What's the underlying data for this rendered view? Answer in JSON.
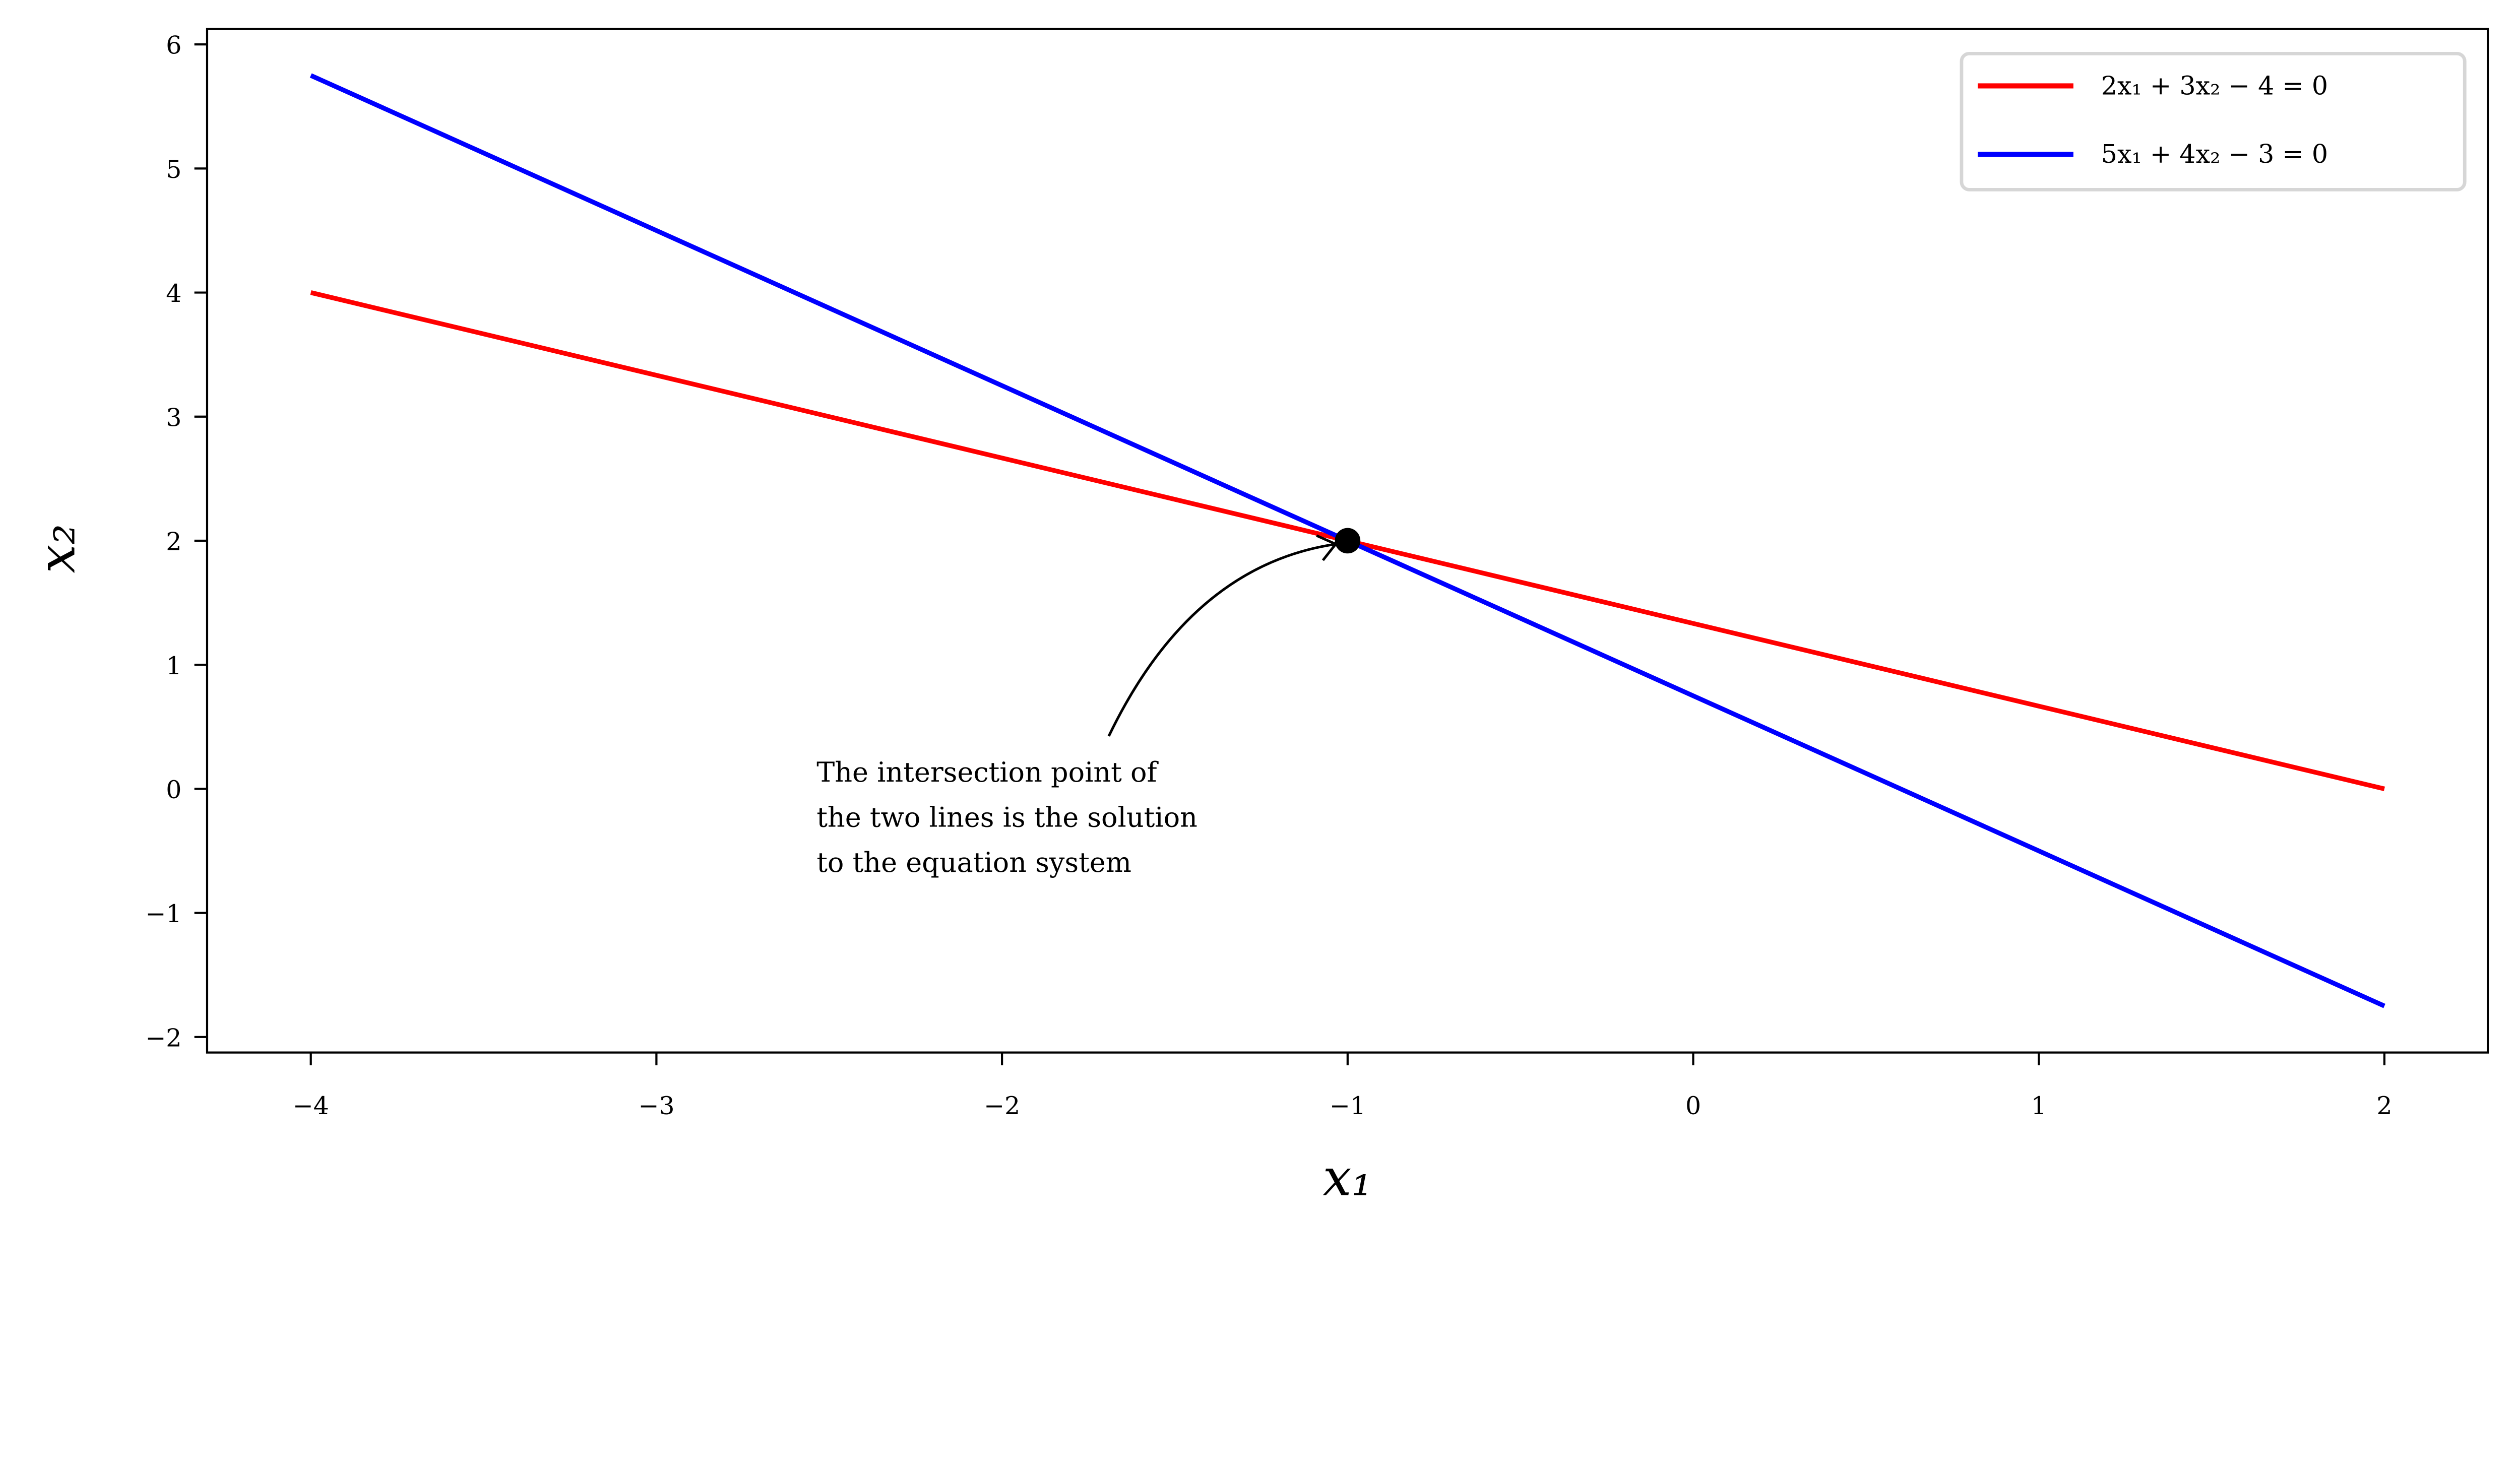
{
  "chart_data": {
    "type": "line",
    "title": "",
    "xlabel": "x₁",
    "ylabel": "x₂",
    "xlim": [
      -4.3,
      2.3
    ],
    "ylim": [
      -2.125,
      6.125
    ],
    "xticks": [
      -4,
      -3,
      -2,
      -1,
      0,
      1,
      2
    ],
    "xtick_labels": [
      "−4",
      "−3",
      "−2",
      "−1",
      "0",
      "1",
      "2"
    ],
    "yticks": [
      -2,
      -1,
      0,
      1,
      2,
      3,
      4,
      5,
      6
    ],
    "ytick_labels": [
      "−2",
      "−1",
      "0",
      "1",
      "2",
      "3",
      "4",
      "5",
      "6"
    ],
    "grid": false,
    "legend_position": "top-right",
    "series": [
      {
        "name": "2x₁ + 3x₂ − 4 = 0",
        "color": "#ff0000",
        "x": [
          -4,
          2
        ],
        "y": [
          4,
          0
        ]
      },
      {
        "name": "5x₁ + 4x₂ − 3 = 0",
        "color": "#0000ff",
        "x": [
          -4,
          2
        ],
        "y": [
          5.75,
          -1.75
        ]
      }
    ],
    "points": [
      {
        "x": -1,
        "y": 2,
        "color": "#000000"
      }
    ],
    "annotation": {
      "lines": [
        "The intersection point of",
        "the two lines is the solution",
        "to the equation system"
      ],
      "points_to": {
        "x": -1,
        "y": 2
      }
    }
  }
}
